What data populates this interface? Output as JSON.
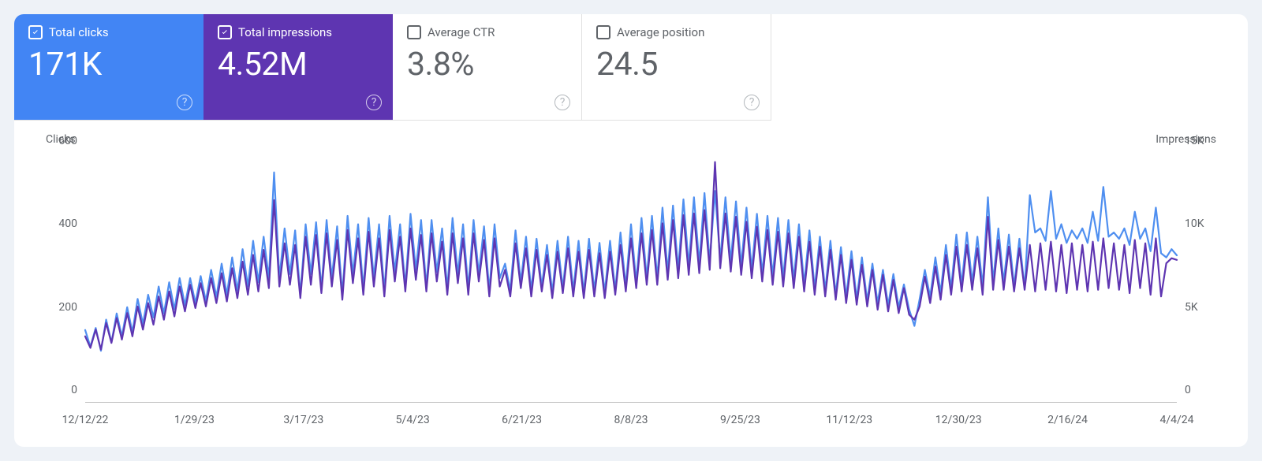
{
  "metrics": [
    {
      "id": "total-clicks",
      "label": "Total clicks",
      "value": "171K",
      "checked": true,
      "active": true,
      "bg": "#4285f4",
      "fg": "#ffffff",
      "help_fg": "#ffffff"
    },
    {
      "id": "total-impressions",
      "label": "Total impressions",
      "value": "4.52M",
      "checked": true,
      "active": true,
      "bg": "#5e35b1",
      "fg": "#ffffff",
      "help_fg": "#ffffff"
    },
    {
      "id": "average-ctr",
      "label": "Average CTR",
      "value": "3.8%",
      "checked": false,
      "active": false,
      "bg": "#ffffff",
      "fg": "#5f6368",
      "help_fg": "#9aa0a6"
    },
    {
      "id": "average-position",
      "label": "Average position",
      "value": "24.5",
      "checked": false,
      "active": false,
      "bg": "#ffffff",
      "fg": "#5f6368",
      "help_fg": "#9aa0a6"
    }
  ],
  "chart": {
    "type": "line",
    "axis_left": {
      "title": "Clicks",
      "min": 0,
      "max": 600,
      "ticks": [
        0,
        200,
        400,
        600
      ]
    },
    "axis_right": {
      "title": "Impressions",
      "min": 0,
      "max": 15000,
      "ticks": [
        0,
        5000,
        10000,
        15000
      ],
      "tick_labels": [
        "0",
        "5K",
        "10K",
        "15K"
      ]
    },
    "x_ticks": [
      "12/12/22",
      "1/29/23",
      "3/17/23",
      "5/4/23",
      "6/21/23",
      "8/8/23",
      "9/25/23",
      "11/12/23",
      "12/30/23",
      "2/16/24",
      "4/4/24"
    ],
    "series": [
      {
        "name": "clicks",
        "color": "#4f8ff0",
        "stroke_width": 2.2,
        "axis": "left",
        "values": [
          175,
          135,
          180,
          125,
          200,
          145,
          215,
          160,
          230,
          170,
          250,
          190,
          260,
          205,
          280,
          215,
          290,
          225,
          300,
          235,
          300,
          240,
          305,
          245,
          320,
          255,
          335,
          260,
          350,
          270,
          370,
          280,
          390,
          290,
          400,
          300,
          555,
          300,
          420,
          310,
          415,
          260,
          430,
          310,
          435,
          275,
          440,
          300,
          425,
          260,
          450,
          310,
          430,
          275,
          445,
          300,
          430,
          270,
          450,
          315,
          430,
          280,
          455,
          320,
          440,
          280,
          440,
          315,
          420,
          275,
          445,
          310,
          430,
          275,
          440,
          310,
          425,
          270,
          430,
          300,
          335,
          270,
          415,
          290,
          400,
          270,
          395,
          280,
          380,
          265,
          390,
          275,
          400,
          270,
          390,
          265,
          395,
          270,
          385,
          265,
          390,
          270,
          410,
          280,
          430,
          290,
          445,
          300,
          450,
          300,
          470,
          315,
          475,
          320,
          490,
          330,
          495,
          335,
          505,
          340,
          510,
          345,
          495,
          340,
          485,
          330,
          470,
          320,
          455,
          310,
          450,
          305,
          445,
          300,
          440,
          295,
          430,
          285,
          415,
          275,
          400,
          270,
          390,
          260,
          375,
          255,
          365,
          250,
          350,
          245,
          335,
          240,
          320,
          235,
          310,
          230,
          285,
          225,
          185,
          250,
          320,
          255,
          350,
          265,
          380,
          275,
          405,
          285,
          410,
          290,
          400,
          280,
          495,
          290,
          420,
          290,
          405,
          280,
          395,
          275,
          500,
          410,
          420,
          390,
          510,
          395,
          430,
          385,
          415,
          395,
          420,
          385,
          460,
          390,
          520,
          400,
          410,
          395,
          420,
          380,
          460,
          395,
          420,
          365,
          470,
          360,
          350,
          370,
          355
        ]
      },
      {
        "name": "impressions",
        "color": "#5e35b1",
        "stroke_width": 2.2,
        "axis": "right",
        "values": [
          4000,
          3300,
          4400,
          3200,
          4800,
          3600,
          5100,
          3800,
          5400,
          4000,
          5800,
          4400,
          6000,
          4700,
          6400,
          5000,
          6700,
          5200,
          7000,
          5500,
          7100,
          5700,
          7200,
          5800,
          7500,
          6000,
          7800,
          6100,
          8100,
          6300,
          8500,
          6500,
          8900,
          6700,
          9200,
          6900,
          12200,
          7000,
          9600,
          7100,
          9500,
          6300,
          10000,
          7100,
          10100,
          6600,
          10200,
          7000,
          9800,
          6200,
          10400,
          7200,
          9900,
          6500,
          10300,
          7000,
          9900,
          6400,
          10400,
          7300,
          10000,
          6700,
          10500,
          7400,
          10100,
          6700,
          10200,
          7300,
          9700,
          6500,
          10200,
          7200,
          9900,
          6500,
          10200,
          7300,
          9800,
          6400,
          9900,
          7000,
          8000,
          6400,
          9600,
          6900,
          9300,
          6400,
          9200,
          6700,
          8900,
          6300,
          9100,
          6600,
          9300,
          6400,
          9100,
          6300,
          9200,
          6400,
          9000,
          6300,
          9100,
          6500,
          9500,
          6700,
          9900,
          6900,
          10200,
          7100,
          10400,
          7100,
          10800,
          7400,
          11000,
          7500,
          11300,
          7700,
          11400,
          7800,
          11600,
          8000,
          14500,
          8100,
          11400,
          7900,
          11200,
          7700,
          10900,
          7500,
          10600,
          7300,
          10400,
          7100,
          10300,
          7000,
          10200,
          6900,
          10000,
          6700,
          9700,
          6500,
          9400,
          6400,
          9200,
          6200,
          8900,
          6000,
          8600,
          5900,
          8300,
          5800,
          8000,
          5600,
          7700,
          5500,
          7400,
          5400,
          6900,
          5300,
          5000,
          5800,
          7600,
          6000,
          8200,
          6200,
          8900,
          6500,
          9400,
          6700,
          9500,
          6800,
          9300,
          6500,
          11200,
          6800,
          9800,
          6800,
          9400,
          6700,
          9300,
          6800,
          9500,
          6700,
          9600,
          6800,
          9700,
          6700,
          9500,
          6600,
          9600,
          6800,
          9500,
          6700,
          9700,
          6800,
          9900,
          6900,
          9600,
          6800,
          9500,
          6600,
          9800,
          6900,
          9600,
          6500,
          9900,
          6400,
          8400,
          8700,
          8600
        ]
      }
    ],
    "background": "#ffffff",
    "baseline_color": "#bdbdbd",
    "tick_color": "#5f6368",
    "tick_fontsize": 14
  }
}
